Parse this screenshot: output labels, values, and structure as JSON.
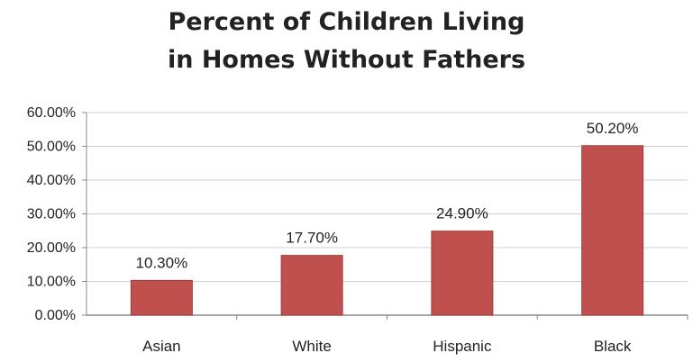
{
  "chart_data": {
    "type": "bar",
    "title_lines": [
      "Percent of Children Living",
      "in Homes Without Fathers"
    ],
    "categories": [
      "Asian",
      "White",
      "Hispanic",
      "Black"
    ],
    "values": [
      10.3,
      17.7,
      24.9,
      50.2
    ],
    "data_labels": [
      "10.30%",
      "17.70%",
      "24.90%",
      "50.20%"
    ],
    "y_ticks": [
      0,
      10,
      20,
      30,
      40,
      50,
      60
    ],
    "y_tick_labels": [
      "0.00%",
      "10.00%",
      "20.00%",
      "30.00%",
      "40.00%",
      "50.00%",
      "60.00%"
    ],
    "ylim": [
      0,
      60
    ],
    "xlabel": "",
    "ylabel": "",
    "grid": true,
    "legend": "none",
    "colors": {
      "bar": "#c0504d",
      "bar_edge": "#a33d3a",
      "grid": "#d0d0d0",
      "axis": "#888888"
    }
  }
}
